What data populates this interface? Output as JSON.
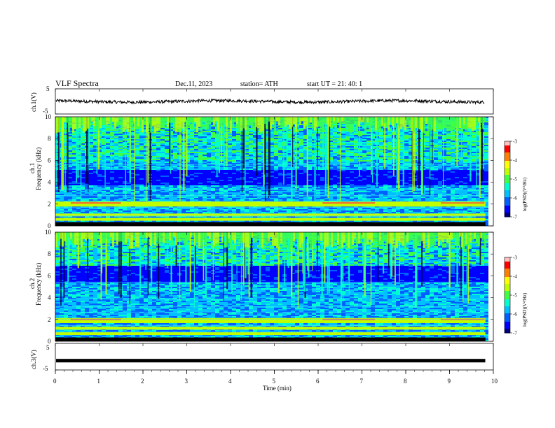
{
  "header": {
    "title": "VLF  Spectra",
    "date": "Dec.11, 2023",
    "station": "station= ATH",
    "start": "start  UT  =    21: 40: 1"
  },
  "chart_data": [
    {
      "type": "line",
      "panel": "ch1-waveform",
      "ylabel": "ch.1(V)",
      "xlim": [
        0,
        10
      ],
      "ylim": [
        -5,
        5
      ],
      "yticks": [
        "5",
        "-5"
      ],
      "series": [
        {
          "x_range_min": [
            0,
            9.8
          ],
          "approx_value_V": 0,
          "approx_amplitude_V": 1.2
        }
      ]
    },
    {
      "type": "heatmap",
      "panel": "ch1-spectrogram",
      "ylabel": "ch.1",
      "ylabel2": "Frequency  (kHz)",
      "xlim": [
        0,
        10
      ],
      "ylim": [
        0,
        10
      ],
      "yticks": [
        "0",
        "2",
        "4",
        "6",
        "8",
        "10"
      ],
      "colorbar": {
        "label": "log(PSD)(V²/Hz)",
        "range": [
          -7,
          -3
        ],
        "ticks": [
          "-3",
          "-4",
          "-5",
          "-6",
          "-7"
        ]
      },
      "features": {
        "quiet_band_kHz": [
          3.8,
          5.2
        ],
        "strong_lines_kHz": [
          2.1,
          1.9,
          1.0,
          0.6
        ],
        "spheric_activity_band_kHz": [
          6,
          10
        ]
      }
    },
    {
      "type": "heatmap",
      "panel": "ch2-spectrogram",
      "ylabel": "ch.2",
      "ylabel2": "Frequency  (kHz)",
      "xlim": [
        0,
        10
      ],
      "ylim": [
        0,
        10
      ],
      "yticks": [
        "0",
        "2",
        "4",
        "6",
        "8",
        "10"
      ],
      "colorbar": {
        "label": "log(PSD)(V²/Hz)",
        "range": [
          -7,
          -3
        ],
        "ticks": [
          "-3",
          "-4",
          "-5",
          "-6",
          "-7"
        ]
      },
      "features": {
        "quiet_band_kHz": [
          5.5,
          7.0
        ],
        "strong_lines_kHz": [
          2.0,
          1.8,
          1.2,
          0.7
        ],
        "spheric_activity_band_kHz": [
          7,
          10
        ]
      }
    },
    {
      "type": "line",
      "panel": "ch3-waveform",
      "ylabel": "ch.3(V)",
      "xlim": [
        0,
        10
      ],
      "ylim": [
        -5,
        5
      ],
      "yticks": [
        "5",
        "-5"
      ],
      "series": [
        {
          "x_range_min": [
            0,
            9.8
          ],
          "approx_value_V": -1.5,
          "approx_amplitude_V": 0
        }
      ]
    }
  ],
  "xaxis": {
    "label": "Time  (min)",
    "ticks": [
      "0",
      "1",
      "2",
      "3",
      "4",
      "5",
      "6",
      "7",
      "8",
      "9",
      "10"
    ]
  },
  "colors": {
    "colormap": [
      "#000080",
      "#0000ff",
      "#0060ff",
      "#00c0ff",
      "#00ffd0",
      "#40ff40",
      "#c0ff00",
      "#ffff00",
      "#ff8000",
      "#ff0000",
      "#ffc0c0"
    ]
  }
}
